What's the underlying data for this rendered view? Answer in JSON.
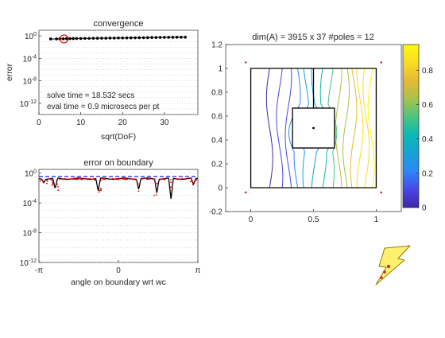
{
  "colors": {
    "axis": "#262626",
    "grid": "#b8b8b8",
    "black_line": "#000000",
    "red_marker": "#e00000",
    "bound_line": "#1a1aff",
    "logo_fill": "#ffef6e",
    "logo_stroke": "#8c7a00"
  },
  "chart_data": [
    {
      "id": "convergence",
      "type": "line",
      "title": "convergence",
      "xlabel": "sqrt(DoF)",
      "ylabel": "error",
      "xlim": [
        0,
        38
      ],
      "ylim_log10": [
        -14,
        1
      ],
      "yscale": "log",
      "grid": true,
      "x_ticks": [
        "0",
        "10",
        "20",
        "30"
      ],
      "x_tick_values": [
        0,
        10,
        20,
        30
      ],
      "y_ticks": [
        {
          "base": "10",
          "exp": "0",
          "value": 0
        },
        {
          "base": "10",
          "exp": "-4",
          "value": -4
        },
        {
          "base": "10",
          "exp": "-8",
          "value": -8
        },
        {
          "base": "10",
          "exp": "-12",
          "value": -12
        }
      ],
      "series": [
        {
          "x": [
            2.8,
            4.2,
            5.0,
            5.8,
            6.6,
            7.4,
            8.2,
            9.0,
            10.0,
            11.0,
            12.0,
            13.0,
            14.0,
            15.0,
            16.0,
            17.0,
            18.0,
            19.0,
            20.0,
            21.0,
            22.0,
            23.0,
            24.0,
            25.0,
            26.0,
            27.0,
            28.0,
            29.0,
            30.0,
            31.0,
            32.0,
            33.0,
            34.0,
            35.0
          ],
          "log10_y": [
            -0.55,
            -0.55,
            -0.52,
            -0.52,
            -0.5,
            -0.5,
            -0.48,
            -0.47,
            -0.47,
            -0.45,
            -0.45,
            -0.44,
            -0.43,
            -0.42,
            -0.42,
            -0.4,
            -0.4,
            -0.38,
            -0.38,
            -0.37,
            -0.36,
            -0.35,
            -0.34,
            -0.33,
            -0.32,
            -0.3,
            -0.3,
            -0.28,
            -0.28,
            -0.27,
            -0.26,
            -0.25,
            -0.24,
            -0.24
          ]
        }
      ],
      "highlight": {
        "x": 6.0,
        "log10_y": -0.55
      },
      "annotations": [
        "solve time = 18.532 secs",
        "eval time =  0.9 microsecs per pt"
      ]
    },
    {
      "id": "error-on-boundary",
      "type": "scatter",
      "title": "error on boundary",
      "xlabel": "angle on boundary wrt wc",
      "xlim": [
        -3.1416,
        3.1416
      ],
      "ylim_log10": [
        -12,
        0.5
      ],
      "yscale": "log",
      "grid": true,
      "x_ticks": [
        "-π",
        "0",
        "π"
      ],
      "x_tick_values": [
        -3.1416,
        0,
        3.1416
      ],
      "y_ticks": [
        {
          "base": "10",
          "exp": "0",
          "value": 0
        },
        {
          "base": "10",
          "exp": "-4",
          "value": -4
        },
        {
          "base": "10",
          "exp": "-8",
          "value": -8
        },
        {
          "base": "10",
          "exp": "-12",
          "value": -12
        }
      ],
      "bound_level_log10": -0.45,
      "baseline_log10": -0.75,
      "dips": [
        {
          "theta": -2.95,
          "depth_log10": -1.3
        },
        {
          "theta": -2.5,
          "depth_log10": -2.1
        },
        {
          "theta": -0.8,
          "depth_log10": -2.4
        },
        {
          "theta": 0.8,
          "depth_log10": -2.2
        },
        {
          "theta": 1.52,
          "depth_log10": -2.7
        },
        {
          "theta": 2.08,
          "depth_log10": -3.5
        },
        {
          "theta": 2.97,
          "depth_log10": -1.5
        }
      ]
    },
    {
      "id": "domain-contours",
      "type": "contour",
      "title": "dim(A) = 3915 x 37  #poles = 12",
      "xlim": [
        -0.2,
        1.2
      ],
      "ylim": [
        -0.2,
        1.2
      ],
      "x_ticks": [
        "0",
        "0.5",
        "1"
      ],
      "x_tick_values": [
        0,
        0.5,
        1
      ],
      "y_ticks": [
        "-0.2",
        "0",
        "0.2",
        "0.4",
        "0.6",
        "0.8",
        "1",
        "1.2"
      ],
      "y_tick_values": [
        -0.2,
        0,
        0.2,
        0.4,
        0.6,
        0.8,
        1,
        1.2
      ],
      "outer_square": [
        [
          0,
          0
        ],
        [
          1,
          0
        ],
        [
          1,
          1
        ],
        [
          0,
          1
        ]
      ],
      "inner_square": [
        [
          0.333,
          0.333
        ],
        [
          0.667,
          0.333
        ],
        [
          0.667,
          0.667
        ],
        [
          0.333,
          0.667
        ]
      ],
      "inner_slit": {
        "x": 0.5,
        "y_from": 0.667,
        "y_to": 1.0
      },
      "center_marker": [
        0.5,
        0.5
      ],
      "contour_x_positions": [
        0.15,
        0.23,
        0.3,
        0.37,
        0.44,
        0.51,
        0.58,
        0.64,
        0.7,
        0.76,
        0.82,
        0.87,
        0.92,
        0.96
      ],
      "poles": [
        [
          -0.04,
          1.05
        ],
        [
          1.04,
          1.05
        ],
        [
          -0.04,
          -0.04
        ],
        [
          1.04,
          -0.04
        ]
      ],
      "colorbar": {
        "min": 0,
        "max": 0.95,
        "ticks": [
          "0",
          "0.2",
          "0.4",
          "0.6",
          "0.8"
        ],
        "tick_values": [
          0,
          0.2,
          0.4,
          0.6,
          0.8
        ]
      },
      "colormap": [
        "#3e26a8",
        "#4847e8",
        "#2e86f8",
        "#16a2d6",
        "#0bb9b4",
        "#4ac480",
        "#a7c34a",
        "#e6b933",
        "#fbdc25",
        "#f9fb0e"
      ]
    }
  ]
}
